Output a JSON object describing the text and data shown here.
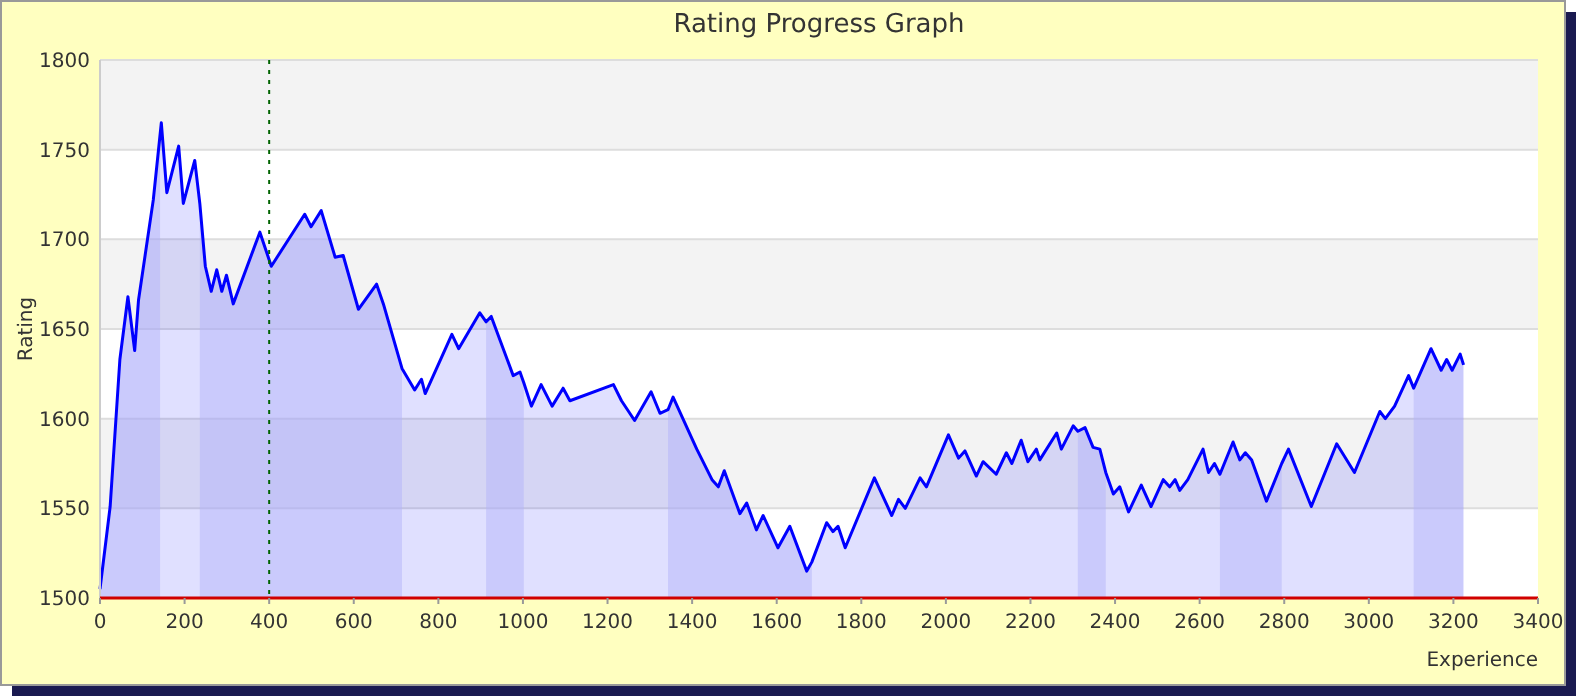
{
  "chart_data": {
    "type": "area",
    "title": "Rating Progress Graph",
    "xlabel": "Experience",
    "ylabel": "Rating",
    "xlim": [
      0,
      3400
    ],
    "xticks": [
      0,
      200,
      400,
      600,
      800,
      1000,
      1200,
      1400,
      1600,
      1800,
      2000,
      2200,
      2400,
      2600,
      2800,
      3000,
      3200,
      3400
    ],
    "ylim": [
      1500,
      1800
    ],
    "yticks": [
      1500,
      1550,
      1600,
      1650,
      1700,
      1750,
      1800
    ],
    "grid": "y",
    "series": [
      {
        "color": "#0000ff",
        "x": [
          0,
          24,
          47,
          66,
          82,
          91,
          126,
          145,
          158,
          186,
          197,
          224,
          236,
          249,
          263,
          276,
          288,
          299,
          315,
          378,
          405,
          484,
          499,
          523,
          556,
          575,
          611,
          654,
          670,
          714,
          744,
          760,
          769,
          832,
          848,
          898,
          913,
          925,
          977,
          993,
          1002,
          1020,
          1043,
          1069,
          1095,
          1111,
          1214,
          1233,
          1264,
          1303,
          1324,
          1343,
          1355,
          1411,
          1447,
          1462,
          1476,
          1513,
          1529,
          1552,
          1568,
          1603,
          1631,
          1671,
          1683,
          1718,
          1733,
          1745,
          1762,
          1831,
          1872,
          1888,
          1904,
          1939,
          1954,
          2006,
          2030,
          2045,
          2072,
          2088,
          2119,
          2143,
          2156,
          2178,
          2194,
          2214,
          2222,
          2262,
          2273,
          2301,
          2312,
          2329,
          2348,
          2364,
          2378,
          2396,
          2411,
          2432,
          2462,
          2485,
          2514,
          2529,
          2542,
          2553,
          2572,
          2608,
          2621,
          2635,
          2648,
          2679,
          2695,
          2708,
          2723,
          2758,
          2794,
          2810,
          2864,
          2924,
          2966,
          3026,
          3039,
          3061,
          3094,
          3106,
          3147,
          3171,
          3184,
          3197,
          3216,
          3224
        ],
        "values": [
          1505,
          1551,
          1633,
          1668,
          1638,
          1666,
          1722,
          1765,
          1726,
          1752,
          1720,
          1744,
          1720,
          1685,
          1671,
          1683,
          1671,
          1680,
          1664,
          1704,
          1685,
          1714,
          1707,
          1716,
          1690,
          1691,
          1661,
          1675,
          1664,
          1628,
          1616,
          1622,
          1614,
          1647,
          1639,
          1659,
          1654,
          1657,
          1624,
          1626,
          1620,
          1607,
          1619,
          1607,
          1617,
          1610,
          1619,
          1610,
          1599,
          1615,
          1603,
          1605,
          1612,
          1583,
          1566,
          1562,
          1571,
          1547,
          1553,
          1538,
          1546,
          1528,
          1540,
          1515,
          1520,
          1542,
          1537,
          1540,
          1528,
          1567,
          1546,
          1555,
          1550,
          1567,
          1562,
          1591,
          1578,
          1582,
          1568,
          1576,
          1569,
          1581,
          1575,
          1588,
          1576,
          1583,
          1577,
          1592,
          1583,
          1596,
          1593,
          1595,
          1584,
          1583,
          1570,
          1558,
          1562,
          1548,
          1563,
          1551,
          1566,
          1562,
          1566,
          1560,
          1566,
          1583,
          1570,
          1575,
          1569,
          1587,
          1577,
          1581,
          1577,
          1554,
          1575,
          1583,
          1551,
          1586,
          1570,
          1604,
          1600,
          1607,
          1624,
          1617,
          1639,
          1627,
          1633,
          1627,
          1636,
          1630
        ]
      }
    ],
    "bands": [
      {
        "axis": "x",
        "from": 0,
        "to": 142,
        "color": "#cdcdfa"
      },
      {
        "axis": "x",
        "from": 236,
        "to": 714,
        "color": "#cdcdfa"
      },
      {
        "axis": "x",
        "from": 913,
        "to": 1002,
        "color": "#cdcdfa"
      },
      {
        "axis": "x",
        "from": 1343,
        "to": 1683,
        "color": "#cdcdfa"
      },
      {
        "axis": "x",
        "from": 2312,
        "to": 2378,
        "color": "#cdcdfa"
      },
      {
        "axis": "x",
        "from": 2648,
        "to": 2794,
        "color": "#cdcdfa"
      },
      {
        "axis": "x",
        "from": 3106,
        "to": 3224,
        "color": "#cdcdfa"
      }
    ],
    "ref_lines": [
      {
        "axis": "x",
        "value": 400,
        "color": "#006400",
        "line_style": "dotted"
      }
    ]
  }
}
